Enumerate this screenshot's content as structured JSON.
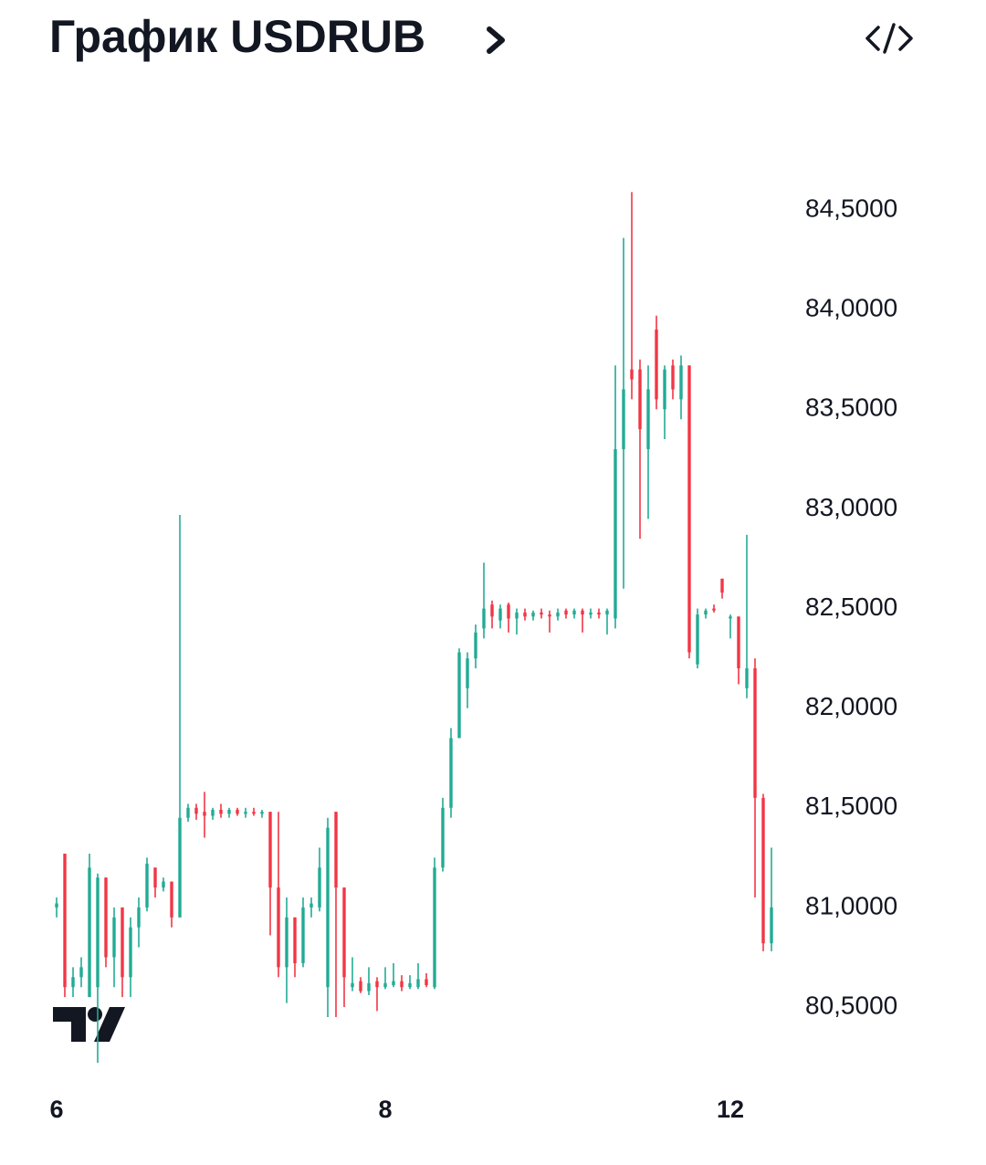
{
  "chart_data": {
    "type": "candlestick",
    "title": "График USDRUB",
    "up_color": "#22ab94",
    "down_color": "#f23645",
    "grid": false,
    "categories": [
      "6",
      null,
      null,
      null,
      null,
      null,
      null,
      null,
      null,
      null,
      null,
      null,
      null,
      null,
      null,
      null,
      null,
      null,
      null,
      null,
      null,
      null,
      null,
      null,
      null,
      null,
      null,
      null,
      null,
      null,
      null,
      null,
      null,
      null,
      null,
      null,
      null,
      null,
      null,
      null,
      "8",
      null,
      null,
      null,
      null,
      null,
      null,
      null,
      null,
      null,
      null,
      null,
      null,
      null,
      null,
      null,
      null,
      null,
      null,
      null,
      null,
      null,
      null,
      null,
      null,
      null,
      null,
      null,
      null,
      null,
      null,
      null,
      null,
      null,
      null,
      null,
      null,
      null,
      null,
      null,
      null,
      null,
      "12",
      null,
      null,
      null,
      null,
      null
    ],
    "open": [
      81.0,
      81.27,
      80.6,
      80.65,
      80.55,
      80.6,
      81.15,
      80.75,
      81.0,
      80.65,
      80.9,
      81.0,
      81.2,
      81.1,
      81.13,
      80.95,
      81.45,
      81.5,
      81.48,
      81.46,
      81.49,
      81.47,
      81.49,
      81.47,
      81.48,
      81.47,
      81.48,
      81.1,
      80.7,
      80.95,
      80.72,
      81.0,
      81.0,
      80.6,
      81.48,
      81.1,
      80.6,
      80.63,
      80.58,
      80.63,
      80.6,
      80.61,
      80.63,
      80.6,
      80.6,
      80.64,
      80.6,
      81.2,
      81.5,
      81.85,
      82.1,
      82.25,
      82.4,
      82.52,
      82.44,
      82.52,
      82.45,
      82.48,
      82.46,
      82.48,
      82.47,
      82.46,
      82.49,
      82.47,
      82.49,
      82.47,
      82.48,
      82.47,
      82.45,
      83.3,
      83.7,
      83.7,
      83.3,
      83.9,
      83.5,
      83.72,
      83.55,
      83.72,
      82.22,
      82.47,
      82.5,
      82.65,
      82.45,
      82.46,
      82.1,
      82.2,
      81.55,
      80.82
    ],
    "high": [
      81.05,
      81.27,
      80.7,
      80.75,
      81.27,
      81.17,
      81.15,
      81.0,
      81.0,
      80.95,
      81.05,
      81.25,
      81.2,
      81.15,
      81.13,
      82.97,
      81.52,
      81.52,
      81.58,
      81.5,
      81.52,
      81.5,
      81.5,
      81.5,
      81.5,
      81.49,
      81.48,
      81.48,
      81.05,
      80.95,
      81.05,
      81.05,
      81.3,
      81.45,
      81.48,
      81.1,
      80.75,
      80.65,
      80.7,
      80.65,
      80.7,
      80.72,
      80.66,
      80.66,
      80.72,
      80.67,
      81.25,
      81.55,
      81.9,
      82.3,
      82.28,
      82.42,
      82.73,
      82.54,
      82.52,
      82.53,
      82.5,
      82.5,
      82.49,
      82.5,
      82.49,
      82.5,
      82.5,
      82.5,
      82.5,
      82.5,
      82.5,
      82.5,
      83.72,
      84.36,
      84.59,
      83.75,
      83.72,
      83.97,
      83.72,
      83.75,
      83.77,
      83.72,
      82.5,
      82.5,
      82.52,
      82.65,
      82.47,
      82.46,
      82.87,
      82.25,
      81.57,
      81.3
    ],
    "low": [
      80.95,
      80.55,
      80.55,
      80.6,
      80.55,
      80.22,
      80.7,
      80.6,
      80.55,
      80.55,
      80.8,
      80.98,
      81.05,
      81.08,
      80.9,
      80.95,
      81.43,
      81.44,
      81.35,
      81.44,
      81.45,
      81.45,
      81.46,
      81.45,
      81.46,
      81.45,
      80.86,
      80.65,
      80.52,
      80.65,
      80.7,
      80.95,
      80.98,
      80.45,
      80.45,
      80.5,
      80.58,
      80.57,
      80.56,
      80.48,
      80.59,
      80.6,
      80.58,
      80.59,
      80.59,
      80.6,
      80.59,
      81.18,
      81.45,
      81.85,
      82.0,
      82.2,
      82.35,
      82.4,
      82.4,
      82.38,
      82.37,
      82.44,
      82.44,
      82.45,
      82.38,
      82.44,
      82.45,
      82.45,
      82.38,
      82.45,
      82.45,
      82.37,
      82.4,
      82.6,
      83.55,
      82.85,
      82.95,
      83.5,
      83.35,
      83.55,
      83.45,
      82.25,
      82.2,
      82.45,
      82.48,
      82.55,
      82.35,
      82.12,
      82.05,
      81.05,
      80.78,
      80.78
    ],
    "close": [
      81.02,
      80.6,
      80.65,
      80.7,
      81.2,
      81.15,
      80.75,
      80.95,
      80.65,
      80.9,
      81.0,
      81.22,
      81.1,
      81.13,
      80.95,
      81.45,
      81.5,
      81.47,
      81.46,
      81.49,
      81.47,
      81.49,
      81.47,
      81.48,
      81.47,
      81.48,
      81.1,
      80.7,
      80.95,
      80.72,
      81.0,
      81.02,
      81.2,
      81.4,
      81.1,
      80.65,
      80.62,
      80.58,
      80.62,
      80.6,
      80.62,
      80.63,
      80.6,
      80.62,
      80.64,
      80.61,
      81.2,
      81.5,
      81.85,
      82.28,
      82.25,
      82.38,
      82.5,
      82.46,
      82.5,
      82.45,
      82.48,
      82.46,
      82.48,
      82.47,
      82.46,
      82.48,
      82.47,
      82.49,
      82.47,
      82.48,
      82.47,
      82.49,
      83.3,
      83.6,
      83.65,
      83.4,
      83.6,
      83.55,
      83.7,
      83.6,
      83.72,
      82.28,
      82.47,
      82.49,
      82.49,
      82.58,
      82.46,
      82.2,
      82.2,
      81.55,
      80.82,
      81.0
    ],
    "ylim": [
      80.2,
      84.65
    ],
    "yticks": [
      {
        "value": 80.5,
        "label": "80,5000"
      },
      {
        "value": 81,
        "label": "81,0000"
      },
      {
        "value": 81.5,
        "label": "81,5000"
      },
      {
        "value": 82,
        "label": "82,0000"
      },
      {
        "value": 82.5,
        "label": "82,5000"
      },
      {
        "value": 83,
        "label": "83,0000"
      },
      {
        "value": 83.5,
        "label": "83,5000"
      },
      {
        "value": 84,
        "label": "84,0000"
      },
      {
        "value": 84.5,
        "label": "84,5000"
      }
    ]
  }
}
